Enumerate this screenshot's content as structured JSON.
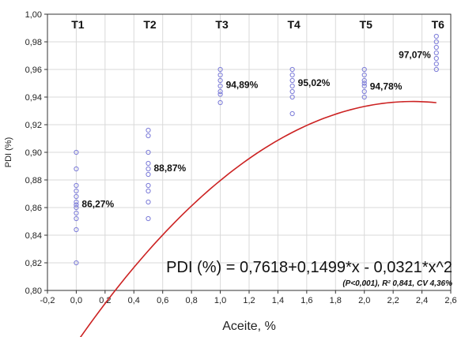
{
  "chart_data": {
    "type": "scatter",
    "xlabel": "Aceite, %",
    "ylabel": "PDI (%)",
    "xlim": [
      -0.2,
      2.6
    ],
    "ylim": [
      0.8,
      1.0
    ],
    "xticks": [
      "-0,2",
      "0,0",
      "0,2",
      "0,4",
      "0,6",
      "0,8",
      "1,0",
      "1,2",
      "1,4",
      "1,6",
      "1,8",
      "2,0",
      "2,2",
      "2,4",
      "2,6"
    ],
    "yticks": [
      "0,80",
      "0,82",
      "0,84",
      "0,86",
      "0,88",
      "0,90",
      "0,92",
      "0,94",
      "0,96",
      "0,98",
      "1,00"
    ],
    "xtick_values": [
      -0.2,
      0.0,
      0.2,
      0.4,
      0.6,
      0.8,
      1.0,
      1.2,
      1.4,
      1.6,
      1.8,
      2.0,
      2.2,
      2.4,
      2.6
    ],
    "ytick_values": [
      0.8,
      0.82,
      0.84,
      0.86,
      0.88,
      0.9,
      0.92,
      0.94,
      0.96,
      0.98,
      1.0
    ],
    "grid": true,
    "series": [
      {
        "x": [
          0,
          0,
          0,
          0,
          0,
          0,
          0,
          0,
          0,
          0,
          0,
          0,
          0.5,
          0.5,
          0.5,
          0.5,
          0.5,
          0.5,
          0.5,
          0.5,
          0.5,
          0.5,
          1.0,
          1.0,
          1.0,
          1.0,
          1.0,
          1.0,
          1.0,
          1.5,
          1.5,
          1.5,
          1.5,
          1.5,
          1.5,
          1.5,
          2.0,
          2.0,
          2.0,
          2.0,
          2.0,
          2.0,
          2.0,
          2.5,
          2.5,
          2.5,
          2.5,
          2.5,
          2.5,
          2.5
        ],
        "y": [
          0.9,
          0.888,
          0.876,
          0.872,
          0.868,
          0.864,
          0.86,
          0.856,
          0.852,
          0.844,
          0.82,
          0.862,
          0.916,
          0.912,
          0.9,
          0.892,
          0.888,
          0.884,
          0.876,
          0.872,
          0.864,
          0.852,
          0.96,
          0.956,
          0.952,
          0.948,
          0.944,
          0.942,
          0.936,
          0.96,
          0.956,
          0.952,
          0.948,
          0.944,
          0.94,
          0.928,
          0.96,
          0.956,
          0.952,
          0.948,
          0.944,
          0.94,
          0.95,
          0.984,
          0.98,
          0.976,
          0.972,
          0.968,
          0.964,
          0.96
        ]
      }
    ],
    "fit_curve": {
      "a": 0.7618,
      "b": 0.1499,
      "c": -0.0321,
      "x_range": [
        0.0,
        2.5
      ],
      "color": "#cc2222"
    },
    "marker_color": "#7a7ad8",
    "groups": [
      {
        "label": "T1",
        "x": 0.0
      },
      {
        "label": "T2",
        "x": 0.5
      },
      {
        "label": "T3",
        "x": 1.0
      },
      {
        "label": "T4",
        "x": 1.5
      },
      {
        "label": "T5",
        "x": 2.0
      },
      {
        "label": "T6",
        "x": 2.5
      }
    ],
    "annotations": [
      {
        "text": "86,27%",
        "x": 0.0,
        "y": 0.8627
      },
      {
        "text": "88,87%",
        "x": 0.5,
        "y": 0.8887
      },
      {
        "text": "94,89%",
        "x": 1.0,
        "y": 0.9489
      },
      {
        "text": "95,02%",
        "x": 1.5,
        "y": 0.9502
      },
      {
        "text": "94,78%",
        "x": 2.0,
        "y": 0.9478
      },
      {
        "text": "97,07%",
        "x": 2.5,
        "y": 0.9707
      }
    ],
    "equation": "PDI (%) = 0,7618+0,1499*x - 0,0321*x^2",
    "equation_stats": "(P<0,001), R² 0,841, CV 4,36%"
  }
}
